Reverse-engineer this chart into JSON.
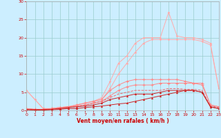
{
  "x": [
    0,
    1,
    2,
    3,
    4,
    5,
    6,
    7,
    8,
    9,
    10,
    11,
    12,
    13,
    14,
    15,
    16,
    17,
    18,
    19,
    20,
    21,
    22,
    23
  ],
  "line_peak": [
    5.5,
    3.0,
    0.5,
    0.5,
    0.8,
    1.0,
    1.5,
    2.0,
    2.5,
    3.5,
    8.0,
    13.0,
    15.0,
    18.5,
    20.0,
    20.0,
    20.0,
    27.0,
    20.5,
    20.0,
    20.0,
    19.5,
    18.5,
    6.0
  ],
  "line_upper": [
    5.5,
    3.0,
    0.5,
    0.5,
    0.8,
    1.0,
    1.5,
    2.0,
    2.5,
    3.0,
    6.0,
    10.0,
    13.0,
    16.0,
    18.5,
    19.5,
    19.5,
    19.5,
    19.5,
    19.5,
    19.5,
    19.0,
    18.0,
    6.0
  ],
  "line_mid2": [
    0.5,
    0.3,
    0.3,
    0.5,
    0.8,
    1.0,
    1.5,
    2.0,
    2.5,
    3.0,
    5.5,
    7.0,
    8.0,
    8.5,
    8.5,
    8.5,
    8.5,
    8.5,
    8.5,
    8.0,
    7.5,
    7.5,
    1.5,
    1.0
  ],
  "line_mid1": [
    0.5,
    0.3,
    0.3,
    0.5,
    0.8,
    1.0,
    1.2,
    1.5,
    2.0,
    2.5,
    4.0,
    5.5,
    6.5,
    7.0,
    7.0,
    7.0,
    7.5,
    7.5,
    7.5,
    7.5,
    7.5,
    7.0,
    1.5,
    1.0
  ],
  "line_dashed": [
    0.3,
    0.2,
    0.2,
    0.3,
    0.5,
    0.8,
    1.0,
    1.5,
    2.0,
    2.5,
    3.5,
    4.5,
    5.0,
    5.5,
    5.5,
    5.5,
    5.5,
    6.0,
    6.0,
    5.8,
    5.8,
    5.5,
    1.2,
    0.8
  ],
  "line_low2": [
    0.2,
    0.2,
    0.2,
    0.3,
    0.5,
    0.8,
    1.0,
    1.2,
    1.5,
    2.0,
    3.0,
    3.5,
    4.0,
    4.5,
    4.5,
    4.5,
    5.0,
    5.5,
    5.5,
    5.5,
    5.5,
    5.0,
    1.0,
    0.5
  ],
  "line_low1": [
    0.2,
    0.1,
    0.1,
    0.2,
    0.3,
    0.5,
    0.5,
    0.8,
    1.0,
    1.2,
    1.5,
    1.8,
    2.0,
    2.5,
    3.0,
    3.5,
    4.0,
    4.5,
    5.0,
    5.5,
    5.5,
    5.0,
    1.0,
    0.5
  ],
  "bg_color": "#cceeff",
  "grid_color": "#99cccc",
  "color_light_pink": "#ffaaaa",
  "color_medium_pink": "#ff8888",
  "color_dark_red": "#cc2222",
  "color_dashed_red": "#ee6666",
  "xlabel": "Vent moyen/en rafales ( km/h )",
  "ylim": [
    0,
    30
  ],
  "xlim": [
    0,
    23
  ],
  "yticks": [
    0,
    5,
    10,
    15,
    20,
    25,
    30
  ],
  "xticks": [
    0,
    1,
    2,
    3,
    4,
    5,
    6,
    7,
    8,
    9,
    10,
    11,
    12,
    13,
    14,
    15,
    16,
    17,
    18,
    19,
    20,
    21,
    22,
    23
  ]
}
